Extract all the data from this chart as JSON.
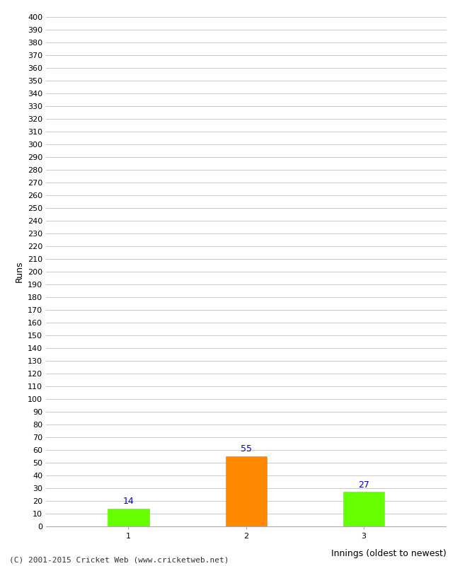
{
  "categories": [
    "1",
    "2",
    "3"
  ],
  "values": [
    14,
    55,
    27
  ],
  "bar_colors": [
    "#66ff00",
    "#ff8800",
    "#66ff00"
  ],
  "ylabel": "Runs",
  "xlabel": "Innings (oldest to newest)",
  "ylim": [
    0,
    400
  ],
  "value_labels": [
    14,
    55,
    27
  ],
  "value_label_color": "#0000cc",
  "background_color": "#ffffff",
  "grid_color": "#cccccc",
  "footer": "(C) 2001-2015 Cricket Web (www.cricketweb.net)"
}
